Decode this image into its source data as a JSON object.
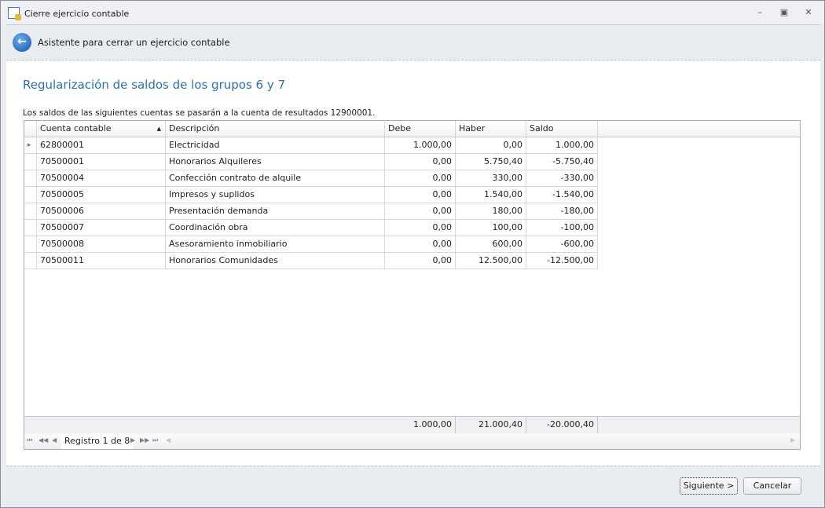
{
  "window": {
    "title": "Cierre ejercicio contable",
    "minimize": "–",
    "restore": "▣",
    "close": "✕"
  },
  "header": {
    "text": "Asistente para cerrar un ejercicio contable"
  },
  "main": {
    "title": "Regularización de saldos de los grupos 6 y 7",
    "description": "Los saldos de las siguientes cuentas se pasarán a la cuenta de resultados 12900001."
  },
  "grid": {
    "columns": [
      "Cuenta contable",
      "Descripción",
      "Debe",
      "Haber",
      "Saldo"
    ],
    "sort_indicator": "▲",
    "rows": [
      [
        "62800001",
        "Electricidad",
        "1.000,00",
        "0,00",
        "1.000,00"
      ],
      [
        "70500001",
        "Honorarios Alquileres",
        "0,00",
        "5.750,40",
        "-5.750,40"
      ],
      [
        "70500004",
        "Confección contrato de alquile",
        "0,00",
        "330,00",
        "-330,00"
      ],
      [
        "70500005",
        "Impresos y suplidos",
        "0,00",
        "1.540,00",
        "-1.540,00"
      ],
      [
        "70500006",
        "Presentación demanda",
        "0,00",
        "180,00",
        "-180,00"
      ],
      [
        "70500007",
        "Coordinación obra",
        "0,00",
        "100,00",
        "-100,00"
      ],
      [
        "70500008",
        "Asesoramiento inmobiliario",
        "0,00",
        "600,00",
        "-600,00"
      ],
      [
        "70500011",
        "Honorarios Comunidades",
        "0,00",
        "12.500,00",
        "-12.500,00"
      ]
    ],
    "totals": {
      "debe": "1.000,00",
      "haber": "21.000,40",
      "saldo": "-20.000,40"
    },
    "navigator": {
      "record": "Registro 1 de 8"
    }
  },
  "footer": {
    "next": "Siguiente >",
    "cancel": "Cancelar"
  }
}
